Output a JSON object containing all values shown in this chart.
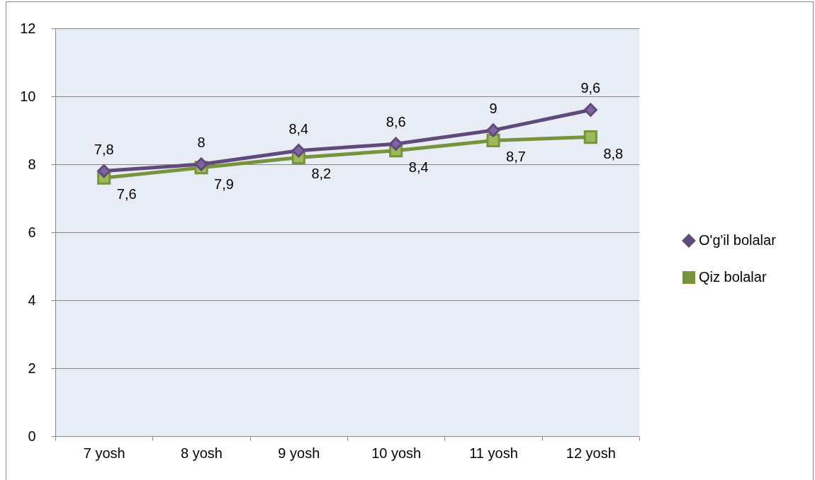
{
  "chart_data": {
    "type": "line",
    "categories": [
      "7 yosh",
      "8 yosh",
      "9 yosh",
      "10 yosh",
      "11 yosh",
      "12 yosh"
    ],
    "series": [
      {
        "name": "O'g'il bolalar",
        "color": "#604a7b",
        "marker": "diamond",
        "values": [
          7.8,
          8,
          8.4,
          8.6,
          9,
          9.6
        ],
        "value_labels": [
          "7,8",
          "8",
          "8,4",
          "8,6",
          "9",
          "9,6"
        ]
      },
      {
        "name": "Qiz bolalar",
        "color": "#77933c",
        "marker": "square",
        "values": [
          7.6,
          7.9,
          8.2,
          8.4,
          8.7,
          8.8
        ],
        "value_labels": [
          "7,6",
          "7,9",
          "8,2",
          "8,4",
          "8,7",
          "8,8"
        ]
      }
    ],
    "ylim": [
      0,
      12
    ],
    "yticks": [
      0,
      2,
      4,
      6,
      8,
      10,
      12
    ],
    "grid": "y",
    "legend": "right"
  }
}
